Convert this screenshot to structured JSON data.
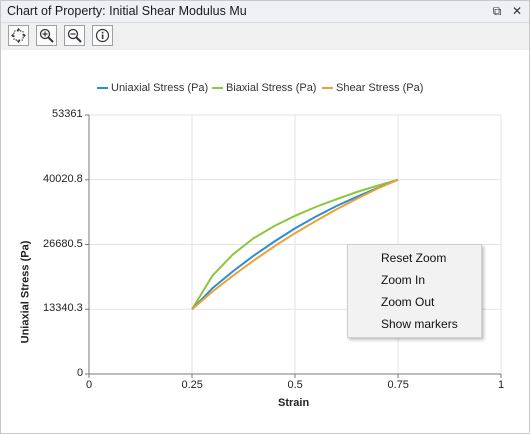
{
  "window": {
    "title": "Chart of Property: Initial Shear Modulus Mu",
    "pin_glyph": "⧉",
    "close_glyph": "✕"
  },
  "toolbar": {
    "tools": [
      {
        "name": "reset-view",
        "icon": "fit-view-icon"
      },
      {
        "name": "zoom-in",
        "icon": "zoom-in-icon"
      },
      {
        "name": "zoom-out",
        "icon": "zoom-out-icon"
      },
      {
        "name": "info",
        "icon": "info-icon"
      }
    ]
  },
  "chart_data": {
    "type": "line",
    "xlabel": "Strain",
    "ylabel": "Uniaxial Stress (Pa)",
    "xlim": [
      0,
      1
    ],
    "ylim": [
      0,
      53361
    ],
    "xticks": [
      "0",
      "0.25",
      "0.5",
      "0.75",
      "1"
    ],
    "yticks": [
      "0",
      "13340.3",
      "26680.5",
      "40020.8",
      "53361"
    ],
    "grid": true,
    "legend_position": "top",
    "series": [
      {
        "name": "Uniaxial Stress (Pa)",
        "color": "#2a8fd6",
        "x": [
          0.25,
          0.3,
          0.35,
          0.4,
          0.45,
          0.5,
          0.55,
          0.6,
          0.65,
          0.7,
          0.75
        ],
        "y": [
          13340,
          17700,
          21200,
          24400,
          27300,
          30000,
          32400,
          34600,
          36500,
          38300,
          40021
        ]
      },
      {
        "name": "Biaxial Stress (Pa)",
        "color": "#8cc63e",
        "x": [
          0.25,
          0.3,
          0.35,
          0.4,
          0.45,
          0.5,
          0.55,
          0.6,
          0.65,
          0.7,
          0.75
        ],
        "y": [
          13340,
          20300,
          24700,
          28000,
          30500,
          32600,
          34400,
          36000,
          37500,
          38800,
          40021
        ]
      },
      {
        "name": "Shear Stress (Pa)",
        "color": "#f0a02e",
        "x": [
          0.25,
          0.3,
          0.35,
          0.4,
          0.45,
          0.5,
          0.55,
          0.6,
          0.65,
          0.7,
          0.75
        ],
        "y": [
          13340,
          17000,
          20300,
          23400,
          26300,
          29000,
          31500,
          33900,
          36100,
          38200,
          40021
        ]
      }
    ]
  },
  "context_menu": {
    "items": [
      {
        "label": "Reset Zoom"
      },
      {
        "label": "Zoom In"
      },
      {
        "label": "Zoom Out"
      },
      {
        "label": "Show markers"
      }
    ]
  }
}
